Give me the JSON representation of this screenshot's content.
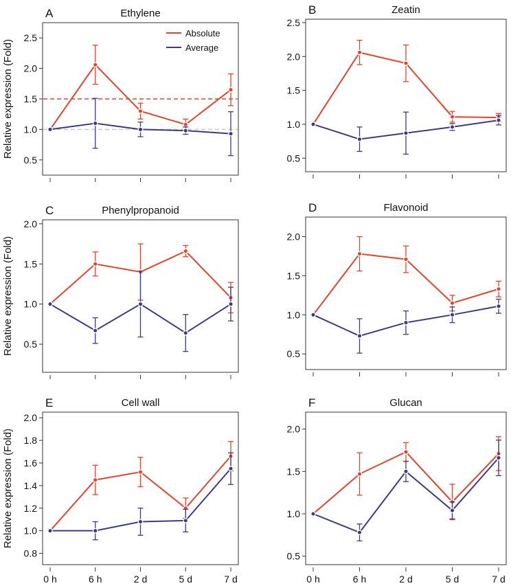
{
  "figure": {
    "ylabel": "Relative expression (Fold)",
    "categories": [
      "0 h",
      "6 h",
      "2 d",
      "5 d",
      "7 d"
    ],
    "legend": {
      "absolute": "Absolute",
      "average": "Average"
    },
    "colors": {
      "absolute": "#e8412b",
      "average": "#3a3a86"
    }
  },
  "chart_data": [
    {
      "type": "line",
      "letter": "A",
      "title": "Ethylene",
      "categories": [
        "0 h",
        "6 h",
        "2 d",
        "5 d",
        "7 d"
      ],
      "ylim": [
        0.25,
        2.75
      ],
      "yticks": [
        0.5,
        1.0,
        1.5,
        2.0,
        2.5
      ],
      "yticklabels": [
        "0.5",
        "1.0",
        "1.5",
        "2.0",
        "2.5"
      ],
      "legend": "top-right",
      "reference_lines": [
        {
          "y": 1.5,
          "color": "#e8412b",
          "style": "dashed"
        },
        {
          "y": 1.0,
          "color": "#c8c8c8",
          "style": "dashed"
        }
      ],
      "series": [
        {
          "name": "Absolute",
          "values": [
            1.0,
            2.06,
            1.3,
            1.08,
            1.65
          ],
          "err": [
            0,
            0.32,
            0.13,
            0.09,
            0.26
          ]
        },
        {
          "name": "Average",
          "values": [
            1.0,
            1.1,
            1.0,
            0.98,
            0.93
          ],
          "err": [
            0,
            0.41,
            0.12,
            0.06,
            0.36
          ]
        }
      ]
    },
    {
      "type": "line",
      "letter": "B",
      "title": "Zeatin",
      "categories": [
        "0 h",
        "6 h",
        "2 d",
        "5 d",
        "7 d"
      ],
      "ylim": [
        0.3,
        2.55
      ],
      "yticks": [
        0.5,
        1.0,
        1.5,
        2.0,
        2.5
      ],
      "yticklabels": [
        "0.5",
        "1.0",
        "1.5",
        "2.0",
        "2.5"
      ],
      "series": [
        {
          "name": "Absolute",
          "values": [
            1.0,
            2.06,
            1.9,
            1.11,
            1.1
          ],
          "err": [
            0,
            0.18,
            0.27,
            0.08,
            0.06
          ]
        },
        {
          "name": "Average",
          "values": [
            1.0,
            0.78,
            0.87,
            0.96,
            1.06
          ],
          "err": [
            0,
            0.18,
            0.31,
            0.05,
            0.07
          ]
        }
      ]
    },
    {
      "type": "line",
      "letter": "C",
      "title": "Phenylpropanoid",
      "categories": [
        "0 h",
        "6 h",
        "2 d",
        "5 d",
        "7 d"
      ],
      "ylim": [
        0.15,
        2.05
      ],
      "yticks": [
        0.5,
        1.0,
        1.5,
        2.0
      ],
      "yticklabels": [
        "0.5",
        "1.0",
        "1.5",
        "2.0"
      ],
      "series": [
        {
          "name": "Absolute",
          "values": [
            1.0,
            1.5,
            1.4,
            1.66,
            1.08
          ],
          "err": [
            0,
            0.15,
            0.35,
            0.07,
            0.19
          ]
        },
        {
          "name": "Average",
          "values": [
            1.0,
            0.67,
            1.0,
            0.64,
            1.0
          ],
          "err": [
            0,
            0.16,
            0.41,
            0.23,
            0.21
          ]
        }
      ]
    },
    {
      "type": "line",
      "letter": "D",
      "title": "Flavonoid",
      "categories": [
        "0 h",
        "6 h",
        "2 d",
        "5 d",
        "7 d"
      ],
      "ylim": [
        0.3,
        2.25
      ],
      "yticks": [
        0.5,
        1.0,
        1.5,
        2.0
      ],
      "yticklabels": [
        "0.5",
        "1.0",
        "1.5",
        "2.0"
      ],
      "series": [
        {
          "name": "Absolute",
          "values": [
            1.0,
            1.78,
            1.71,
            1.15,
            1.33
          ],
          "err": [
            0,
            0.22,
            0.17,
            0.1,
            0.1
          ]
        },
        {
          "name": "Average",
          "values": [
            1.0,
            0.73,
            0.9,
            1.0,
            1.11
          ],
          "err": [
            0,
            0.22,
            0.15,
            0.1,
            0.09
          ]
        }
      ]
    },
    {
      "type": "line",
      "letter": "E",
      "title": "Cell wall",
      "categories": [
        "0 h",
        "6 h",
        "2 d",
        "5 d",
        "7 d"
      ],
      "ylim": [
        0.7,
        2.05
      ],
      "yticks": [
        0.8,
        1.0,
        1.2,
        1.4,
        1.6,
        1.8,
        2.0
      ],
      "yticklabels": [
        "0.8",
        "1.0",
        "1.2",
        "1.4",
        "1.6",
        "1.8",
        "2.0"
      ],
      "series": [
        {
          "name": "Absolute",
          "values": [
            1.0,
            1.45,
            1.52,
            1.2,
            1.66
          ],
          "err": [
            0,
            0.13,
            0.13,
            0.09,
            0.13
          ]
        },
        {
          "name": "Average",
          "values": [
            1.0,
            1.0,
            1.08,
            1.09,
            1.55
          ],
          "err": [
            0,
            0.08,
            0.12,
            0.1,
            0.14
          ]
        }
      ]
    },
    {
      "type": "line",
      "letter": "F",
      "title": "Glucan",
      "categories": [
        "0 h",
        "6 h",
        "2 d",
        "5 d",
        "7 d"
      ],
      "ylim": [
        0.4,
        2.2
      ],
      "yticks": [
        0.5,
        1.0,
        1.5,
        2.0
      ],
      "yticklabels": [
        "0.5",
        "1.0",
        "1.5",
        "2.0"
      ],
      "series": [
        {
          "name": "Absolute",
          "values": [
            1.0,
            1.47,
            1.73,
            1.14,
            1.71
          ],
          "err": [
            0,
            0.25,
            0.11,
            0.21,
            0.2
          ]
        },
        {
          "name": "Average",
          "values": [
            1.0,
            0.78,
            1.5,
            1.04,
            1.66
          ],
          "err": [
            0,
            0.1,
            0.12,
            0.1,
            0.21
          ]
        }
      ]
    }
  ]
}
